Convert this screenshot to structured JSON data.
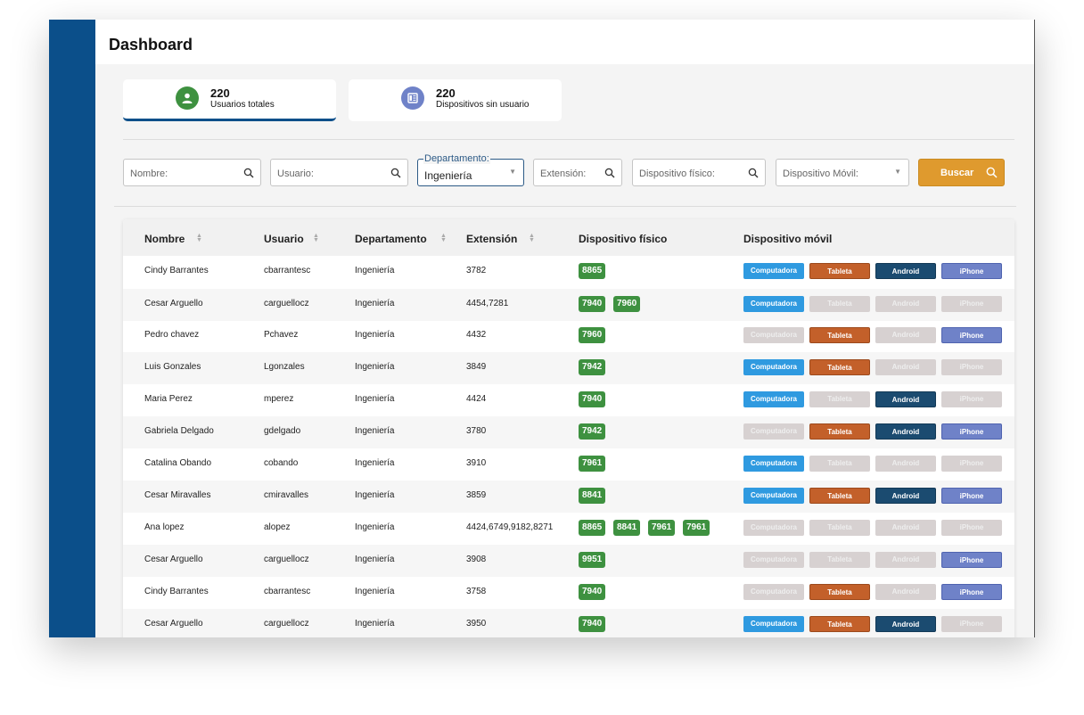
{
  "header": {
    "title": "Dashboard"
  },
  "stats": [
    {
      "value": "220",
      "label": "Usuarios totales",
      "icon": "user-icon",
      "active": true
    },
    {
      "value": "220",
      "label": "Dispositivos sin usuario",
      "icon": "device-list-icon",
      "active": false
    }
  ],
  "filters": {
    "nombre_placeholder": "Nombre:",
    "usuario_placeholder": "Usuario:",
    "departamento_label": "Departamento:",
    "departamento_value": "Ingeniería",
    "extension_placeholder": "Extensión:",
    "dispositivo_fisico_placeholder": "Dispositivo físico:",
    "dispositivo_movil_placeholder": "Dispositivo Móvil:",
    "buscar_label": "Buscar"
  },
  "table": {
    "columns": [
      "Nombre",
      "Usuario",
      "Departamento",
      "Extensión",
      "Dispositivo físico",
      "Dispositivo móvil"
    ],
    "device_labels": [
      "Computadora",
      "Tableta",
      "Android",
      "iPhone"
    ],
    "rows": [
      {
        "nombre": "Cindy Barrantes",
        "usuario": "cbarrantesc",
        "departamento": "Ingeniería",
        "extension": "3782",
        "fisicos": [
          "8865"
        ],
        "moviles": [
          true,
          true,
          true,
          true
        ]
      },
      {
        "nombre": "Cesar Arguello",
        "usuario": "carguellocz",
        "departamento": "Ingeniería",
        "extension": "4454,7281",
        "fisicos": [
          "7940",
          "7960"
        ],
        "moviles": [
          true,
          false,
          false,
          false
        ]
      },
      {
        "nombre": "Pedro chavez",
        "usuario": "Pchavez",
        "departamento": "Ingeniería",
        "extension": "4432",
        "fisicos": [
          "7960"
        ],
        "moviles": [
          false,
          true,
          false,
          true
        ]
      },
      {
        "nombre": "Luis Gonzales",
        "usuario": "Lgonzales",
        "departamento": "Ingeniería",
        "extension": "3849",
        "fisicos": [
          "7942"
        ],
        "moviles": [
          true,
          true,
          false,
          false
        ]
      },
      {
        "nombre": "Maria Perez",
        "usuario": "mperez",
        "departamento": "Ingeniería",
        "extension": "4424",
        "fisicos": [
          "7940"
        ],
        "moviles": [
          true,
          false,
          true,
          false
        ]
      },
      {
        "nombre": "Gabriela Delgado",
        "usuario": "gdelgado",
        "departamento": "Ingeniería",
        "extension": "3780",
        "fisicos": [
          "7942"
        ],
        "moviles": [
          false,
          true,
          true,
          true
        ]
      },
      {
        "nombre": "Catalina Obando",
        "usuario": "cobando",
        "departamento": "Ingeniería",
        "extension": "3910",
        "fisicos": [
          "7961"
        ],
        "moviles": [
          true,
          false,
          false,
          false
        ]
      },
      {
        "nombre": "Cesar Miravalles",
        "usuario": "cmiravalles",
        "departamento": "Ingeniería",
        "extension": "3859",
        "fisicos": [
          "8841"
        ],
        "moviles": [
          true,
          true,
          true,
          true
        ]
      },
      {
        "nombre": "Ana lopez",
        "usuario": "alopez",
        "departamento": "Ingeniería",
        "extension": "4424,6749,9182,8271",
        "fisicos": [
          "8865",
          "8841",
          "7961",
          "7961"
        ],
        "moviles": [
          false,
          false,
          false,
          false
        ]
      },
      {
        "nombre": "Cesar Arguello",
        "usuario": "carguellocz",
        "departamento": "Ingeniería",
        "extension": "3908",
        "fisicos": [
          "9951"
        ],
        "moviles": [
          false,
          false,
          false,
          true
        ]
      },
      {
        "nombre": "Cindy Barrantes",
        "usuario": "cbarrantesc",
        "departamento": "Ingeniería",
        "extension": "3758",
        "fisicos": [
          "7940"
        ],
        "moviles": [
          false,
          true,
          false,
          true
        ]
      },
      {
        "nombre": "Cesar Arguello",
        "usuario": "carguellocz",
        "departamento": "Ingeniería",
        "extension": "3950",
        "fisicos": [
          "7940"
        ],
        "moviles": [
          true,
          true,
          true,
          false
        ]
      }
    ]
  },
  "colors": {
    "sidebar": "#0b4f8a",
    "chip_green": "#3e9140",
    "buscar": "#df9a2e",
    "computadora": "#2f9ae0",
    "tableta": "#c3602a",
    "android": "#1b4b70",
    "iphone": "#6f82c8",
    "disabled": "#d7d1d1"
  }
}
